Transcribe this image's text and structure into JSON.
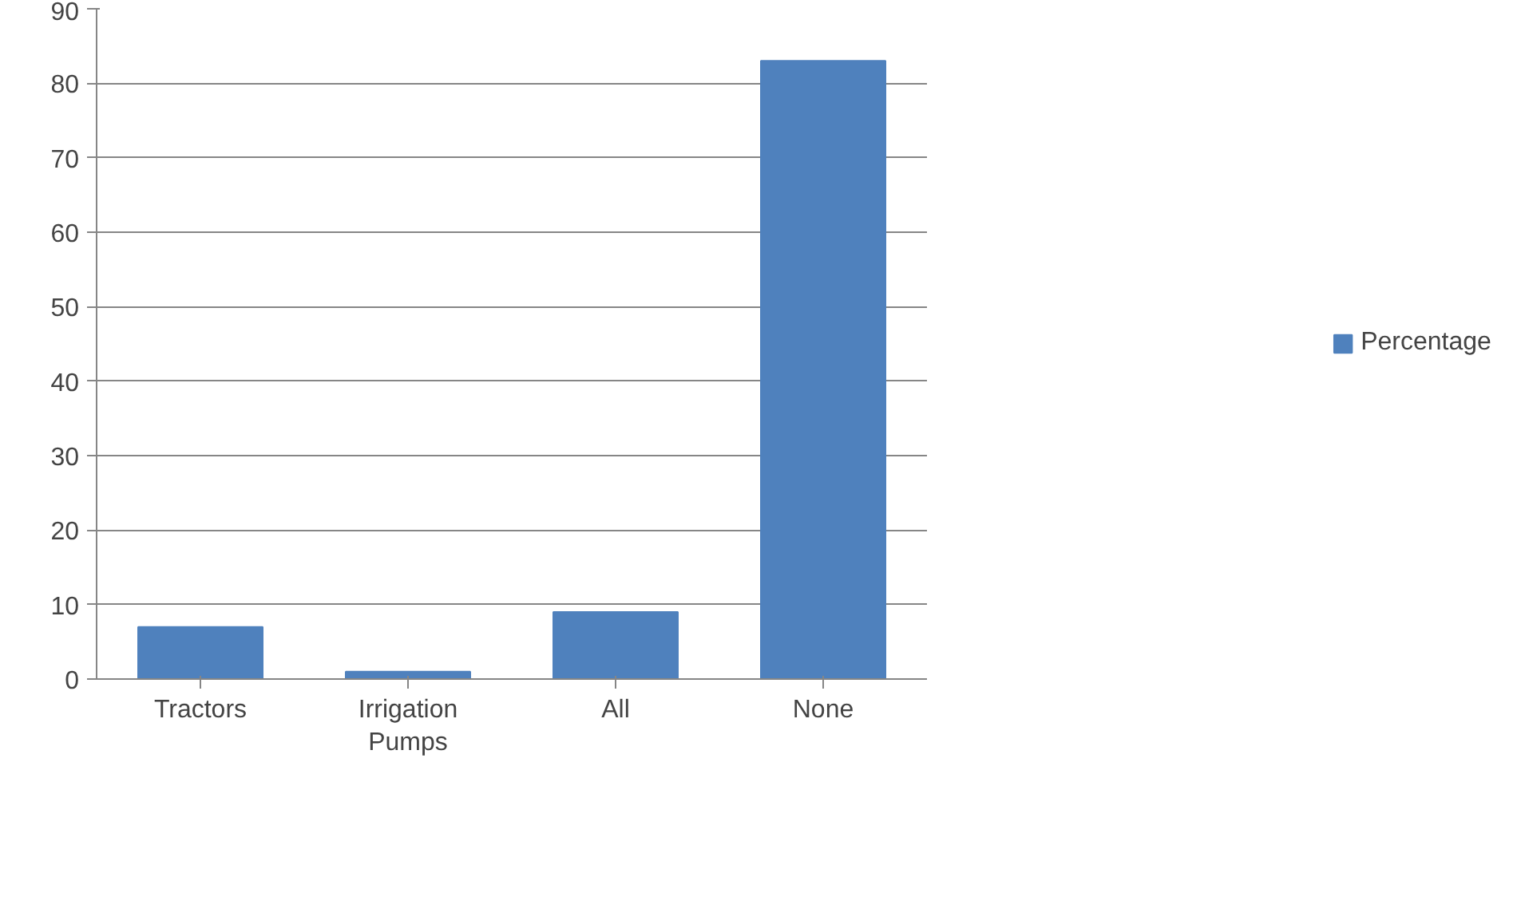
{
  "chart_data": {
    "type": "bar",
    "categories": [
      "Tractors",
      "Irrigation\nPumps",
      "All",
      "None"
    ],
    "series": [
      {
        "name": "Percentage",
        "color": "#4f81bd",
        "values": [
          7,
          1,
          9,
          83
        ]
      }
    ],
    "ylim": [
      0,
      90
    ],
    "yticks": [
      0,
      10,
      20,
      30,
      40,
      50,
      60,
      70,
      80,
      90
    ],
    "grid": "y",
    "legend": "right"
  }
}
